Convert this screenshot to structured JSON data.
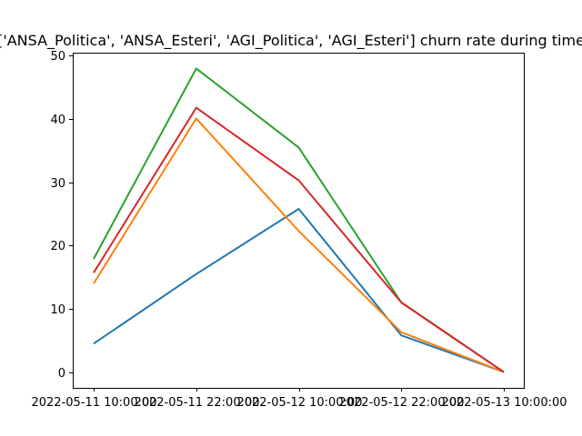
{
  "chart_data": {
    "type": "line",
    "title": "['ANSA_Politica', 'ANSA_Esteri', 'AGI_Politica', 'AGI_Esteri'] churn rate during time",
    "xlabel": "",
    "ylabel": "",
    "x": [
      "2022-05-11 10:00:00",
      "2022-05-11 22:00:00",
      "2022-05-12 10:00:00",
      "2022-05-12 22:00:00",
      "2022-05-13 10:00:00"
    ],
    "ylim": [
      -2.5,
      50.5
    ],
    "yticks": [
      0,
      10,
      20,
      30,
      40,
      50
    ],
    "grid": false,
    "series": [
      {
        "color": "#1f77b4",
        "values": [
          4.5,
          15.5,
          25.8,
          5.8,
          0
        ]
      },
      {
        "color": "#ff7f0e",
        "values": [
          14.0,
          40.1,
          22.3,
          6.3,
          0
        ]
      },
      {
        "color": "#2ca02c",
        "values": [
          17.9,
          48.0,
          35.5,
          11.0,
          0
        ]
      },
      {
        "color": "#d62728",
        "values": [
          15.7,
          41.8,
          30.3,
          11.0,
          0
        ]
      }
    ]
  }
}
